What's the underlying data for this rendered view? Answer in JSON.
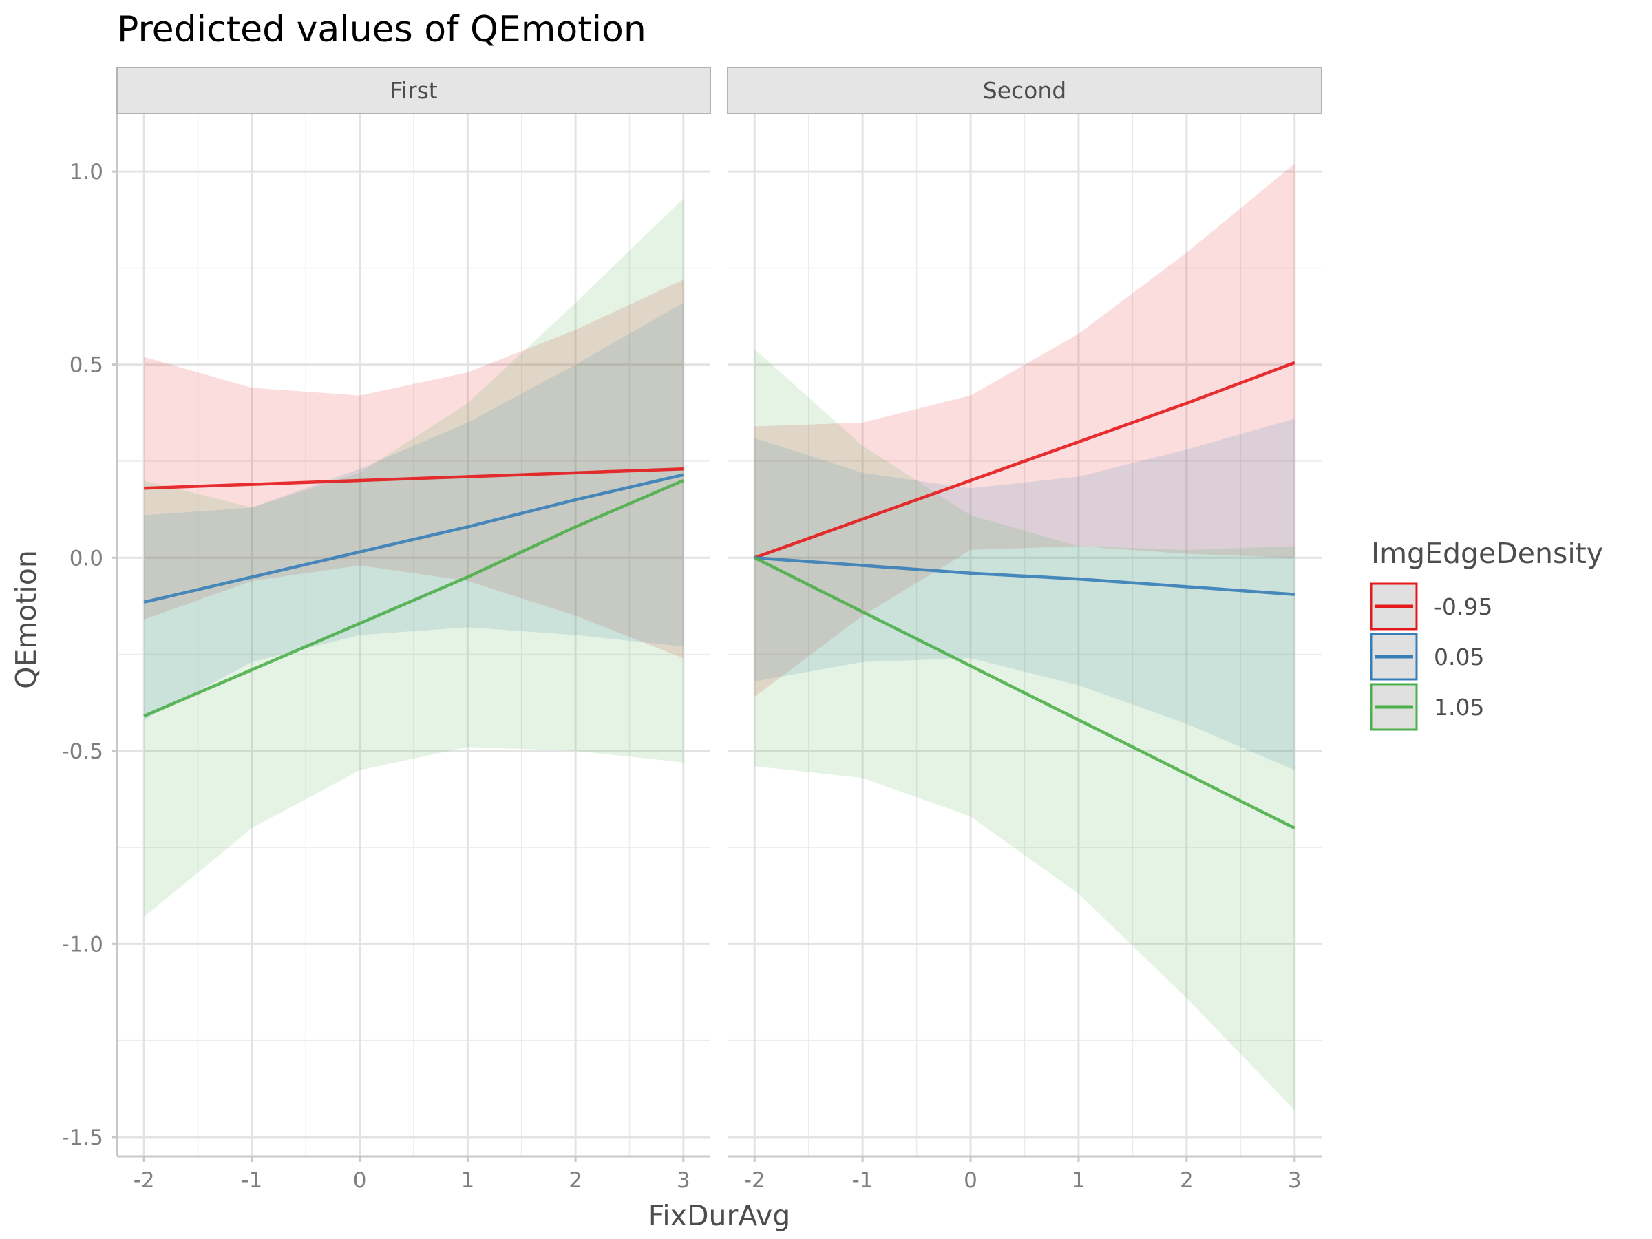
{
  "chart_data": {
    "type": "line",
    "title": "Predicted values of QEmotion",
    "xlabel": "FixDurAvg",
    "ylabel": "QEmotion",
    "xlim": [
      -2.25,
      3.25
    ],
    "ylim": [
      -1.55,
      1.15
    ],
    "x_ticks": [
      -2,
      -1,
      0,
      1,
      2,
      3
    ],
    "x_tick_labels": [
      "-2",
      "-1",
      "0",
      "1",
      "2",
      "3"
    ],
    "y_ticks": [
      -1.5,
      -1.0,
      -0.5,
      0.0,
      0.5,
      1.0
    ],
    "y_tick_labels": [
      "-1.5",
      "-1.0",
      "-0.5",
      "0.0",
      "0.5",
      "1.0"
    ],
    "grid": true,
    "legend": {
      "title": "ImgEdgeDensity",
      "position": "right",
      "entries": [
        {
          "label": "-0.95",
          "color": "#e41a1c"
        },
        {
          "label": "0.05",
          "color": "#377eb8"
        },
        {
          "label": "1.05",
          "color": "#4daf4a"
        }
      ]
    },
    "x": [
      -2,
      -1,
      0,
      1,
      2,
      3
    ],
    "panels": [
      {
        "label": "First",
        "series": [
          {
            "name": "-0.95",
            "color": "#e41a1c",
            "values": [
              0.18,
              0.19,
              0.2,
              0.21,
              0.22,
              0.23
            ],
            "lower": [
              -0.16,
              -0.06,
              -0.02,
              -0.06,
              -0.15,
              -0.26
            ],
            "upper": [
              0.52,
              0.44,
              0.42,
              0.48,
              0.59,
              0.72
            ]
          },
          {
            "name": "0.05",
            "color": "#377eb8",
            "values": [
              -0.115,
              -0.05,
              0.015,
              0.08,
              0.15,
              0.215
            ],
            "lower": [
              -0.42,
              -0.27,
              -0.2,
              -0.18,
              -0.2,
              -0.23
            ],
            "upper": [
              0.11,
              0.13,
              0.23,
              0.35,
              0.5,
              0.66
            ]
          },
          {
            "name": "1.05",
            "color": "#4daf4a",
            "values": [
              -0.41,
              -0.29,
              -0.17,
              -0.05,
              0.08,
              0.2
            ],
            "lower": [
              -0.93,
              -0.7,
              -0.55,
              -0.49,
              -0.5,
              -0.53
            ],
            "upper": [
              0.2,
              0.13,
              0.22,
              0.4,
              0.66,
              0.93
            ]
          }
        ]
      },
      {
        "label": "Second",
        "series": [
          {
            "name": "-0.95",
            "color": "#e41a1c",
            "values": [
              0.0,
              0.1,
              0.2,
              0.3,
              0.4,
              0.505
            ],
            "lower": [
              -0.36,
              -0.15,
              0.02,
              0.03,
              0.01,
              0.0
            ],
            "upper": [
              0.34,
              0.35,
              0.42,
              0.58,
              0.79,
              1.02
            ]
          },
          {
            "name": "0.05",
            "color": "#377eb8",
            "values": [
              0.0,
              -0.02,
              -0.04,
              -0.055,
              -0.075,
              -0.095
            ],
            "lower": [
              -0.32,
              -0.27,
              -0.26,
              -0.33,
              -0.43,
              -0.55
            ],
            "upper": [
              0.31,
              0.22,
              0.18,
              0.21,
              0.28,
              0.36
            ]
          },
          {
            "name": "1.05",
            "color": "#4daf4a",
            "values": [
              0.0,
              -0.14,
              -0.28,
              -0.42,
              -0.56,
              -0.7
            ],
            "lower": [
              -0.54,
              -0.57,
              -0.67,
              -0.87,
              -1.14,
              -1.43
            ],
            "upper": [
              0.54,
              0.29,
              0.11,
              0.03,
              0.02,
              0.03
            ]
          }
        ]
      }
    ]
  }
}
